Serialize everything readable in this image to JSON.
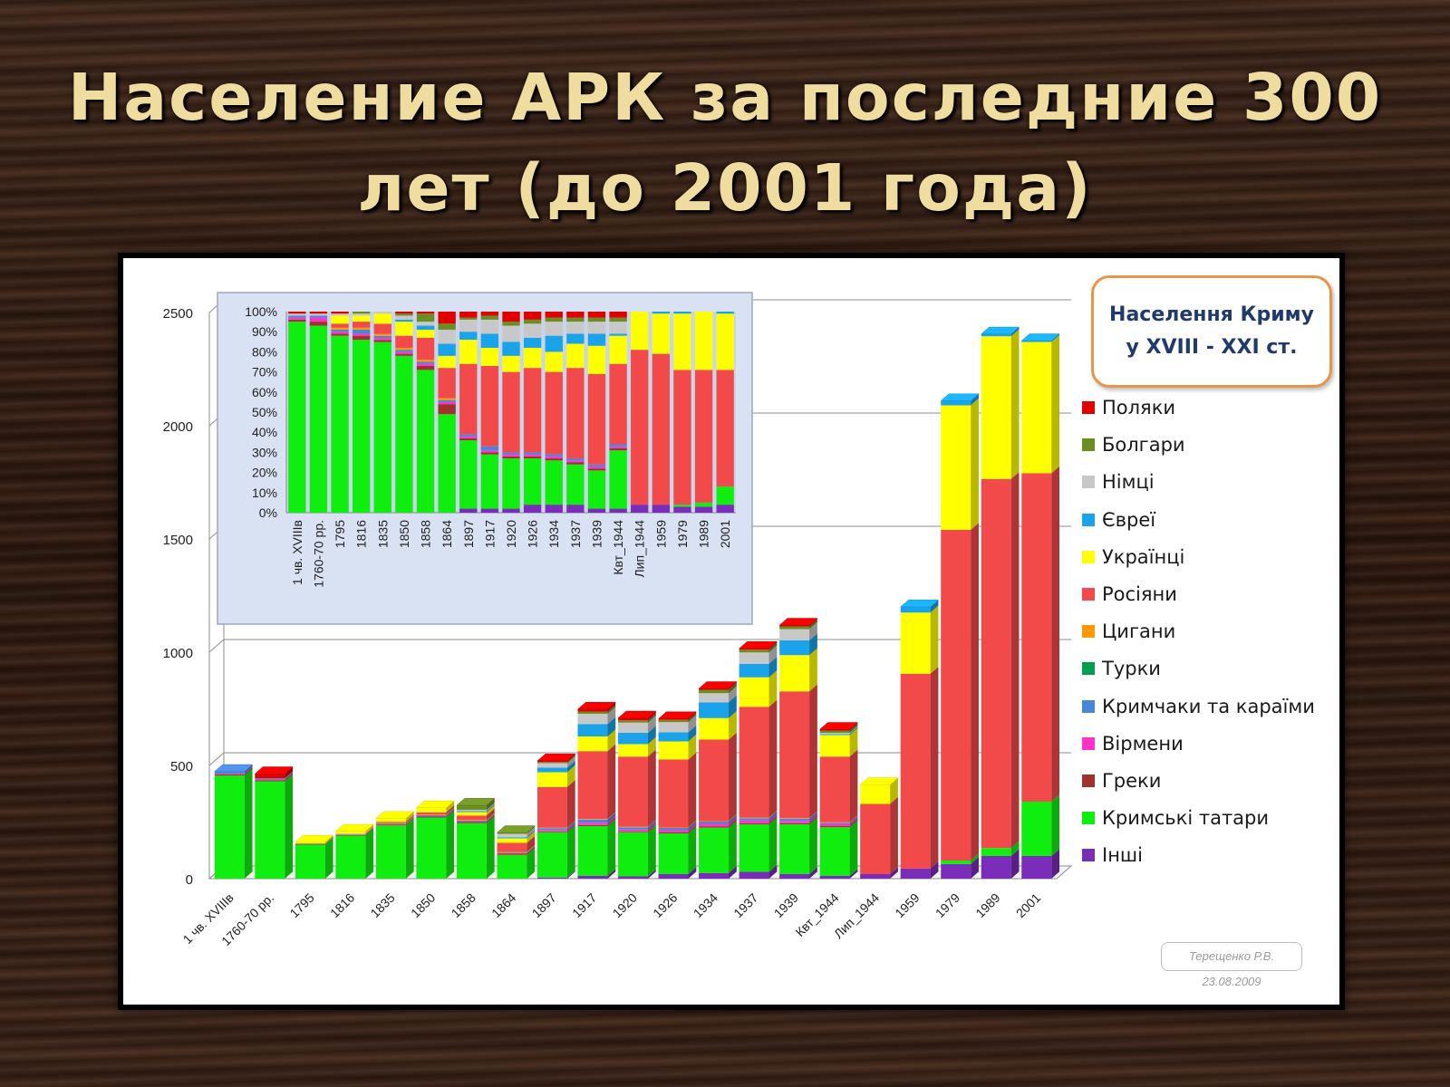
{
  "slide": {
    "title": "Население АРК за последние 300 лет (до 2001 года)"
  },
  "badge": {
    "line1": "Населення Криму",
    "line2": "у XVIII - XXI ст."
  },
  "credit": {
    "author": "Терещенко Р.В.",
    "date": "23.08.2009"
  },
  "colors": {
    "Поляки": "#e00000",
    "Болгари": "#6b8e23",
    "Німці": "#c8c8c8",
    "Євреї": "#1aa3e8",
    "Українці": "#ffff00",
    "Росіяни": "#f24a4a",
    "Цигани": "#ff9900",
    "Турки": "#009e4f",
    "Кримчаки та караїми": "#4a86d8",
    "Вірмени": "#ff33cc",
    "Греки": "#a0322c",
    "Кримські татари": "#10ee10",
    "Інші": "#7a2db8"
  },
  "legend": [
    "Поляки",
    "Болгари",
    "Німці",
    "Євреї",
    "Українці",
    "Росіяни",
    "Цигани",
    "Турки",
    "Кримчаки та караїми",
    "Вірмени",
    "Греки",
    "Кримські татари",
    "Інші"
  ],
  "chart_data": [
    {
      "type": "bar",
      "stacked": true,
      "ylim": [
        0,
        2500
      ],
      "yticks": [
        0,
        500,
        1000,
        1500,
        2000,
        2500
      ],
      "grid": true,
      "legend_position": "right",
      "categories": [
        "1 чв. XVIIIв",
        "1760-70 рр.",
        "1795",
        "1816",
        "1835",
        "1850",
        "1858",
        "1864",
        "1897",
        "1917",
        "1920",
        "1926",
        "1934",
        "1937",
        "1939",
        "Квт_1944",
        "Лип_1944",
        "1959",
        "1979",
        "1989",
        "2001"
      ],
      "series": [
        {
          "name": "Інші",
          "values": [
            0,
            0,
            0,
            0,
            0,
            0,
            0,
            0,
            5,
            12,
            10,
            20,
            25,
            30,
            20,
            12,
            20,
            45,
            65,
            100,
            100
          ]
        },
        {
          "name": "Кримські татари",
          "values": [
            455,
            430,
            150,
            190,
            235,
            270,
            245,
            105,
            200,
            220,
            195,
            180,
            200,
            210,
            220,
            215,
            0,
            0,
            15,
            35,
            240
          ]
        },
        {
          "name": "Греки",
          "values": [
            5,
            5,
            2,
            3,
            3,
            4,
            5,
            5,
            4,
            5,
            4,
            4,
            5,
            5,
            5,
            5,
            0,
            0,
            0,
            0,
            0
          ]
        },
        {
          "name": "Вірмени",
          "values": [
            3,
            3,
            1,
            2,
            2,
            2,
            2,
            2,
            6,
            10,
            8,
            10,
            12,
            12,
            10,
            10,
            0,
            0,
            0,
            0,
            0
          ]
        },
        {
          "name": "Кримчаки та караїми",
          "values": [
            10,
            5,
            1,
            2,
            3,
            4,
            4,
            3,
            8,
            14,
            10,
            10,
            10,
            10,
            10,
            5,
            0,
            0,
            0,
            0,
            0
          ]
        },
        {
          "name": "Турки",
          "values": [
            0,
            0,
            0,
            0,
            0,
            0,
            0,
            0,
            0,
            0,
            0,
            0,
            0,
            0,
            0,
            0,
            0,
            0,
            0,
            0,
            0
          ]
        },
        {
          "name": "Цигани",
          "values": [
            0,
            0,
            2,
            2,
            3,
            3,
            3,
            3,
            2,
            2,
            2,
            2,
            2,
            2,
            2,
            2,
            0,
            0,
            0,
            0,
            0
          ]
        },
        {
          "name": "Росіяни",
          "values": [
            0,
            0,
            0,
            0,
            5,
            10,
            20,
            40,
            180,
            300,
            310,
            300,
            360,
            490,
            560,
            290,
            310,
            860,
            1460,
            1630,
            1450
          ]
        },
        {
          "name": "Українці",
          "values": [
            0,
            0,
            5,
            10,
            15,
            20,
            15,
            20,
            65,
            65,
            55,
            80,
            95,
            130,
            160,
            95,
            85,
            270,
            550,
            630,
            580
          ]
        },
        {
          "name": "Євреї",
          "values": [
            0,
            0,
            0,
            0,
            0,
            0,
            5,
            5,
            20,
            55,
            50,
            40,
            70,
            60,
            65,
            5,
            0,
            25,
            20,
            10,
            5
          ]
        },
        {
          "name": "Німці",
          "values": [
            0,
            0,
            0,
            0,
            0,
            0,
            5,
            15,
            20,
            45,
            45,
            45,
            40,
            50,
            50,
            5,
            0,
            0,
            0,
            0,
            0
          ]
        },
        {
          "name": "Болгари",
          "values": [
            0,
            0,
            0,
            0,
            0,
            0,
            20,
            5,
            5,
            10,
            10,
            10,
            15,
            12,
            12,
            10,
            0,
            0,
            0,
            0,
            0
          ]
        },
        {
          "name": "Поляки",
          "values": [
            0,
            20,
            0,
            0,
            0,
            0,
            0,
            0,
            5,
            10,
            10,
            5,
            5,
            5,
            5,
            5,
            0,
            0,
            0,
            0,
            0
          ]
        }
      ]
    },
    {
      "type": "bar",
      "stacked_percent": true,
      "ylim": [
        0,
        100
      ],
      "yticks": [
        "0%",
        "10%",
        "20%",
        "30%",
        "40%",
        "50%",
        "60%",
        "70%",
        "80%",
        "90%",
        "100%"
      ],
      "grid": false,
      "categories": [
        "1 чв. XVIIIв",
        "1760-70 рр.",
        "1795",
        "1816",
        "1835",
        "1850",
        "1858",
        "1864",
        "1897",
        "1917",
        "1920",
        "1926",
        "1934",
        "1937",
        "1939",
        "Квт_1944",
        "Лип_1944",
        "1959",
        "1979",
        "1989",
        "2001"
      ],
      "series": [
        {
          "name": "Інші",
          "values": [
            0,
            0,
            0,
            0,
            0,
            0,
            0,
            0,
            2,
            2,
            2,
            4,
            4,
            4,
            2,
            2,
            4,
            4,
            3,
            3,
            4
          ]
        },
        {
          "name": "Кримські татари",
          "values": [
            95,
            93,
            88,
            86,
            84,
            78,
            71,
            49,
            34,
            27,
            25,
            23,
            22,
            20,
            19,
            29,
            0,
            0,
            1,
            2,
            9
          ]
        },
        {
          "name": "Греки",
          "values": [
            1,
            2,
            1,
            2,
            1,
            1,
            2,
            5,
            1,
            1,
            1,
            1,
            1,
            1,
            1,
            1,
            0,
            0,
            0,
            0,
            0
          ]
        },
        {
          "name": "Вірмени",
          "values": [
            1,
            2,
            1,
            1,
            1,
            1,
            1,
            1,
            1,
            1,
            1,
            1,
            1,
            1,
            1,
            1,
            0,
            0,
            0,
            0,
            0
          ]
        },
        {
          "name": "Кримчаки та караїми",
          "values": [
            1,
            1,
            1,
            2,
            1,
            1,
            1,
            1,
            1,
            2,
            1,
            1,
            1,
            1,
            1,
            1,
            0,
            0,
            0,
            0,
            0
          ]
        },
        {
          "name": "Турки",
          "values": [
            0,
            0,
            0,
            0,
            0,
            0,
            0,
            0,
            0,
            0,
            0,
            0,
            0,
            0,
            0,
            0,
            0,
            0,
            0,
            0,
            0
          ]
        },
        {
          "name": "Цигани",
          "values": [
            0,
            0,
            1,
            1,
            1,
            1,
            1,
            1,
            0,
            0,
            0,
            0,
            0,
            0,
            0,
            0,
            0,
            0,
            0,
            0,
            0
          ]
        },
        {
          "name": "Росіяни",
          "values": [
            0,
            0,
            2,
            3,
            5,
            6,
            11,
            15,
            35,
            40,
            40,
            42,
            41,
            45,
            45,
            40,
            77,
            75,
            67,
            66,
            58
          ]
        },
        {
          "name": "Українці",
          "values": [
            0,
            0,
            4,
            3,
            5,
            7,
            4,
            6,
            12,
            9,
            8,
            10,
            10,
            12,
            14,
            14,
            19,
            20,
            28,
            29,
            28
          ]
        },
        {
          "name": "Євреї",
          "values": [
            0,
            0,
            0,
            0,
            0,
            1,
            2,
            6,
            4,
            7,
            7,
            5,
            8,
            5,
            6,
            1,
            0,
            1,
            1,
            0,
            1
          ]
        },
        {
          "name": "Німці",
          "values": [
            1,
            1,
            1,
            1,
            1,
            2,
            2,
            7,
            6,
            7,
            8,
            7,
            7,
            6,
            6,
            6,
            0,
            0,
            0,
            0,
            0
          ]
        },
        {
          "name": "Болгари",
          "values": [
            0,
            0,
            0,
            1,
            0,
            1,
            4,
            3,
            1,
            2,
            2,
            2,
            2,
            2,
            2,
            2,
            0,
            0,
            0,
            0,
            0
          ]
        },
        {
          "name": "Поляки",
          "values": [
            1,
            1,
            1,
            0,
            0,
            1,
            1,
            6,
            3,
            2,
            5,
            4,
            3,
            3,
            3,
            3,
            0,
            0,
            0,
            0,
            0
          ]
        }
      ]
    }
  ]
}
